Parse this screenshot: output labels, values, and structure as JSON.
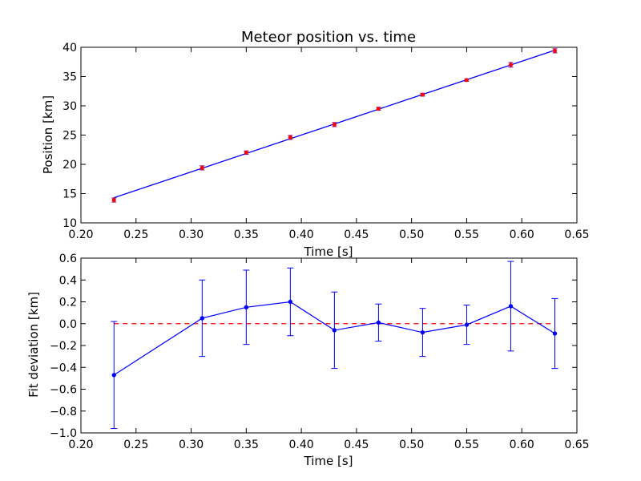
{
  "chart_data": [
    {
      "type": "scatter",
      "title": "Meteor position vs. time",
      "xlabel": "Time [s]",
      "ylabel": "Position [km]",
      "xlim": [
        0.2,
        0.65
      ],
      "ylim": [
        10,
        40
      ],
      "xticks": [
        "0.20",
        "0.25",
        "0.30",
        "0.35",
        "0.40",
        "0.45",
        "0.50",
        "0.55",
        "0.60",
        "0.65"
      ],
      "yticks": [
        "10",
        "15",
        "20",
        "25",
        "30",
        "35",
        "40"
      ],
      "grid": false,
      "x": [
        0.23,
        0.31,
        0.35,
        0.39,
        0.43,
        0.47,
        0.51,
        0.55,
        0.59,
        0.63
      ],
      "y": [
        13.9,
        19.4,
        22.0,
        24.6,
        26.8,
        29.5,
        31.9,
        34.4,
        37.0,
        39.4
      ],
      "yerr": [
        0.35,
        0.35,
        0.3,
        0.35,
        0.35,
        0.25,
        0.25,
        0.2,
        0.4,
        0.35
      ],
      "marker_color": "#ff0000",
      "errorbar_color": "#800080",
      "fit_line": {
        "x": [
          0.23,
          0.63
        ],
        "y": [
          14.3,
          39.5
        ],
        "color": "#0000ff"
      }
    },
    {
      "type": "line",
      "title": "",
      "xlabel": "Time [s]",
      "ylabel": "Fit deviation [km]",
      "xlim": [
        0.2,
        0.65
      ],
      "ylim": [
        -1.0,
        0.6
      ],
      "xticks": [
        "0.20",
        "0.25",
        "0.30",
        "0.35",
        "0.40",
        "0.45",
        "0.50",
        "0.55",
        "0.60",
        "0.65"
      ],
      "yticks": [
        "−1.0",
        "−0.8",
        "−0.6",
        "−0.4",
        "−0.2",
        "0.0",
        "0.2",
        "0.4",
        "0.6"
      ],
      "grid": false,
      "x": [
        0.23,
        0.31,
        0.35,
        0.39,
        0.43,
        0.47,
        0.51,
        0.55,
        0.59,
        0.63
      ],
      "y": [
        -0.47,
        0.05,
        0.15,
        0.2,
        -0.06,
        0.01,
        -0.08,
        -0.01,
        0.16,
        -0.09
      ],
      "yerr": [
        0.49,
        0.35,
        0.34,
        0.31,
        0.35,
        0.17,
        0.22,
        0.18,
        0.41,
        0.32
      ],
      "series_color": "#0000ff",
      "reference_line": {
        "y": 0.0,
        "x": [
          0.23,
          0.63
        ],
        "color": "#ff0000",
        "style": "dashed"
      }
    }
  ]
}
